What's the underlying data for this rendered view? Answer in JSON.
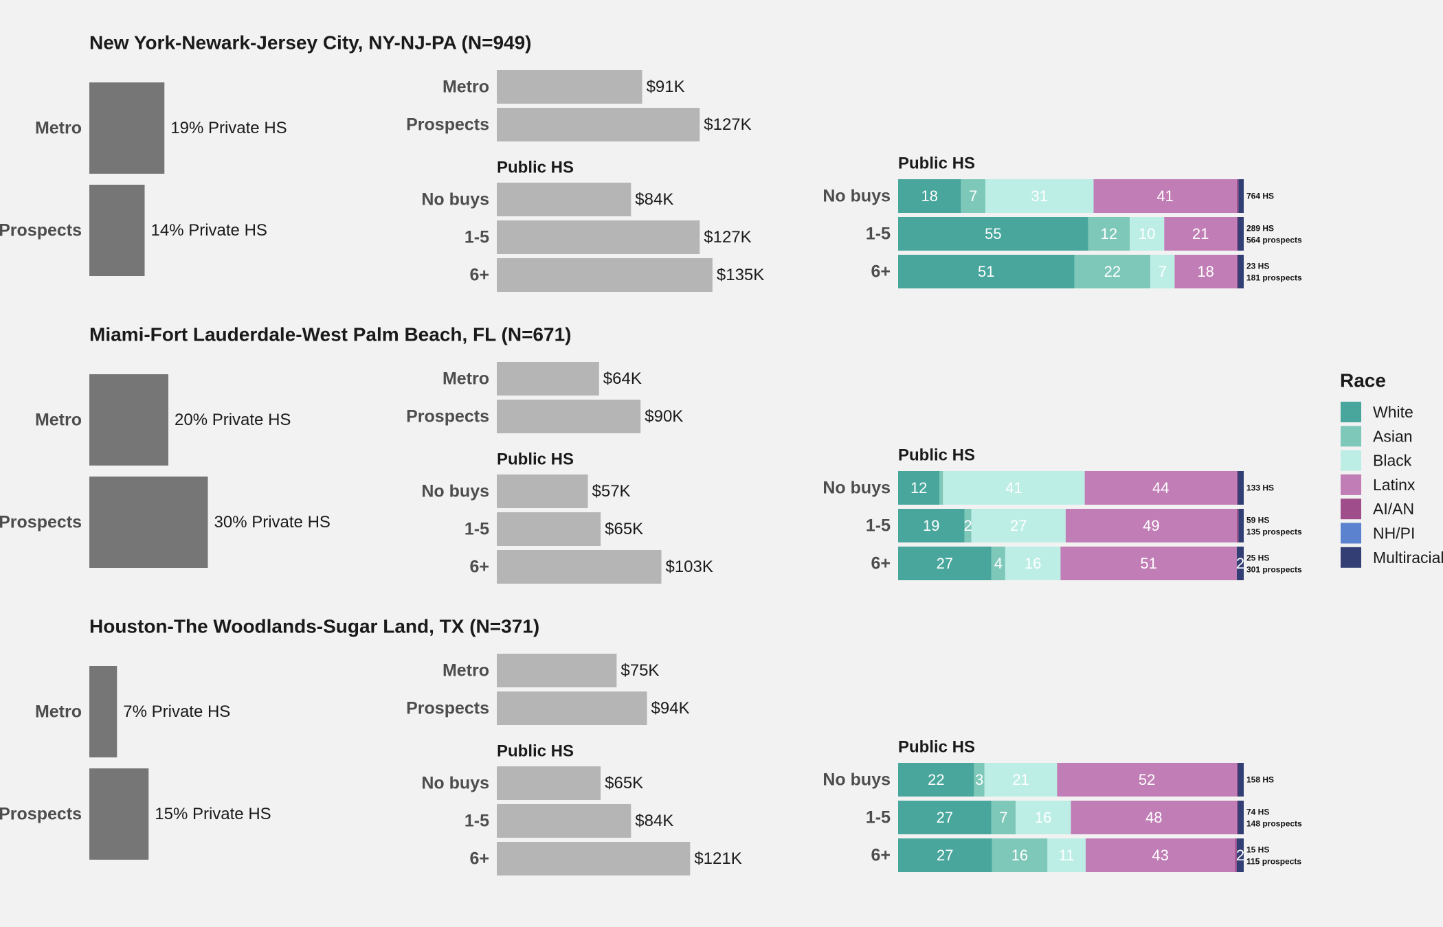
{
  "colors": {
    "background": "#f2f2f2",
    "private_bar": "#767676",
    "income_bar": "#b5b5b5",
    "axis_text": "#4d4d4d",
    "White": "#48a69c",
    "Asian": "#7ec8b9",
    "Black": "#bdeee6",
    "Latinx": "#c17db5",
    "AI/AN": "#a04d8c",
    "NH/PI": "#5b82cf",
    "Multiracial": "#333f74"
  },
  "legend": {
    "title": "Race",
    "items": [
      "White",
      "Asian",
      "Black",
      "Latinx",
      "AI/AN",
      "NH/PI",
      "Multiracial"
    ]
  },
  "chart_data": [
    {
      "title": "New York-Newark-Jersey City, NY-NJ-PA (N=949)",
      "private_hs": {
        "type": "bar",
        "categories": [
          "Metro",
          "Prospects"
        ],
        "values": [
          19,
          14
        ],
        "labels": [
          "19% Private HS",
          "14% Private HS"
        ]
      },
      "income_top": {
        "type": "bar",
        "categories": [
          "Metro",
          "Prospects"
        ],
        "values": [
          91,
          127
        ],
        "labels": [
          "$91K",
          "$127K"
        ]
      },
      "income_public_hs": {
        "type": "bar",
        "subtitle": "Public HS",
        "categories": [
          "No buys",
          "1-5",
          "6+"
        ],
        "values": [
          84,
          127,
          135
        ],
        "labels": [
          "$84K",
          "$127K",
          "$135K"
        ]
      },
      "race": {
        "type": "bar",
        "subtitle": "Public HS",
        "categories": [
          "No buys",
          "1-5",
          "6+"
        ],
        "series_order": [
          "White",
          "Asian",
          "Black",
          "Latinx",
          "AI/AN",
          "NH/PI",
          "Multiracial"
        ],
        "rows": [
          {
            "values": [
              18,
              7,
              31,
              41,
              0.5,
              0,
              1.5
            ],
            "shown": [
              "18",
              "7",
              "31",
              "41",
              "",
              "",
              ""
            ],
            "note": [
              "764 HS"
            ]
          },
          {
            "values": [
              55,
              12,
              10,
              21,
              0.3,
              0,
              1.7
            ],
            "shown": [
              "55",
              "12",
              "10",
              "21",
              "",
              "",
              ""
            ],
            "note": [
              "289 HS",
              "564 prospects"
            ]
          },
          {
            "values": [
              51,
              22,
              7,
              18,
              0.3,
              0,
              1.7
            ],
            "shown": [
              "51",
              "22",
              "7",
              "18",
              "",
              "",
              ""
            ],
            "note": [
              "23 HS",
              "181 prospects"
            ]
          }
        ]
      }
    },
    {
      "title": "Miami-Fort Lauderdale-West Palm Beach, FL (N=671)",
      "private_hs": {
        "type": "bar",
        "categories": [
          "Metro",
          "Prospects"
        ],
        "values": [
          20,
          30
        ],
        "labels": [
          "20% Private HS",
          "30% Private HS"
        ]
      },
      "income_top": {
        "type": "bar",
        "categories": [
          "Metro",
          "Prospects"
        ],
        "values": [
          64,
          90
        ],
        "labels": [
          "$64K",
          "$90K"
        ]
      },
      "income_public_hs": {
        "type": "bar",
        "subtitle": "Public HS",
        "categories": [
          "No buys",
          "1-5",
          "6+"
        ],
        "values": [
          57,
          65,
          103
        ],
        "labels": [
          "$57K",
          "$65K",
          "$103K"
        ]
      },
      "race": {
        "type": "bar",
        "subtitle": "Public HS",
        "categories": [
          "No buys",
          "1-5",
          "6+"
        ],
        "series_order": [
          "White",
          "Asian",
          "Black",
          "Latinx",
          "AI/AN",
          "NH/PI",
          "Multiracial"
        ],
        "rows": [
          {
            "values": [
              12,
              1,
              41,
              44,
              0.3,
              0,
              1.7
            ],
            "shown": [
              "12",
              "",
              "41",
              "44",
              "",
              "",
              ""
            ],
            "note": [
              "133 HS"
            ]
          },
          {
            "values": [
              19,
              2,
              27,
              49,
              0.5,
              0,
              1.5
            ],
            "shown": [
              "19",
              "2",
              "27",
              "49",
              "",
              "",
              ""
            ],
            "note": [
              "59 HS",
              "135 prospects"
            ]
          },
          {
            "values": [
              27,
              4,
              16,
              51,
              0,
              0,
              2
            ],
            "shown": [
              "27",
              "4",
              "16",
              "51",
              "",
              "",
              "2"
            ],
            "note": [
              "25 HS",
              "301 prospects"
            ]
          }
        ]
      }
    },
    {
      "title": "Houston-The Woodlands-Sugar Land, TX (N=371)",
      "private_hs": {
        "type": "bar",
        "categories": [
          "Metro",
          "Prospects"
        ],
        "values": [
          7,
          15
        ],
        "labels": [
          "7% Private HS",
          "15% Private HS"
        ]
      },
      "income_top": {
        "type": "bar",
        "categories": [
          "Metro",
          "Prospects"
        ],
        "values": [
          75,
          94
        ],
        "labels": [
          "$75K",
          "$94K"
        ]
      },
      "income_public_hs": {
        "type": "bar",
        "subtitle": "Public HS",
        "categories": [
          "No buys",
          "1-5",
          "6+"
        ],
        "values": [
          65,
          84,
          121
        ],
        "labels": [
          "$65K",
          "$84K",
          "$121K"
        ]
      },
      "race": {
        "type": "bar",
        "subtitle": "Public HS",
        "categories": [
          "No buys",
          "1-5",
          "6+"
        ],
        "series_order": [
          "White",
          "Asian",
          "Black",
          "Latinx",
          "AI/AN",
          "NH/PI",
          "Multiracial"
        ],
        "rows": [
          {
            "values": [
              22,
              3,
              21,
              52,
              0.3,
              0,
              1.7
            ],
            "shown": [
              "22",
              "3",
              "21",
              "52",
              "",
              "",
              ""
            ],
            "note": [
              "158 HS"
            ]
          },
          {
            "values": [
              27,
              7,
              16,
              48,
              0.3,
              0,
              1.7
            ],
            "shown": [
              "27",
              "7",
              "16",
              "48",
              "",
              "",
              ""
            ],
            "note": [
              "74 HS",
              "148 prospects"
            ]
          },
          {
            "values": [
              27,
              16,
              11,
              43,
              0.5,
              0,
              2
            ],
            "shown": [
              "27",
              "16",
              "11",
              "43",
              "",
              "",
              "2"
            ],
            "note": [
              "15 HS",
              "115 prospects"
            ]
          }
        ]
      }
    }
  ]
}
